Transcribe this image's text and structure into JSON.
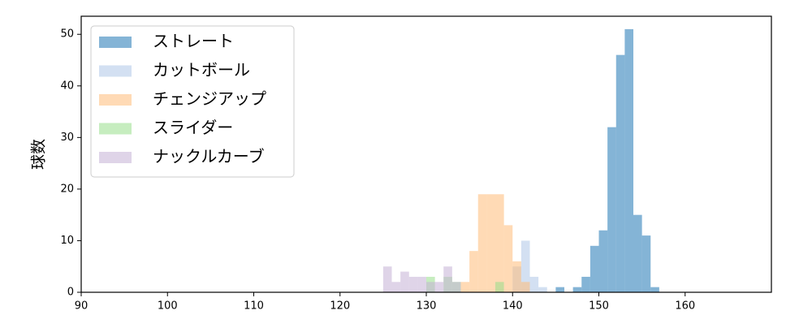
{
  "chart_data": {
    "type": "histogram",
    "y_label": "球数",
    "bins": [
      125,
      126,
      127,
      128,
      129,
      130,
      131,
      132,
      133,
      134,
      135,
      136,
      137,
      138,
      139,
      140,
      141,
      142,
      143,
      144,
      145,
      146,
      147,
      148,
      149,
      150,
      151,
      152,
      153,
      154,
      155,
      156,
      157
    ],
    "series": [
      {
        "name": "ストレート",
        "color": "#1f77b4",
        "values": [
          0,
          0,
          0,
          0,
          0,
          0,
          0,
          0,
          0,
          0,
          0,
          0,
          0,
          0,
          0,
          0,
          0,
          0,
          0,
          0,
          1,
          0,
          1,
          3,
          9,
          12,
          32,
          46,
          51,
          15,
          11,
          1
        ]
      },
      {
        "name": "カットボール",
        "color": "#aec7e8",
        "values": [
          0,
          0,
          0,
          0,
          0,
          0,
          0,
          0,
          0,
          0,
          0,
          0,
          0,
          0,
          0,
          5,
          10,
          3,
          1,
          0,
          0,
          0,
          0,
          0,
          0,
          0,
          0,
          0,
          0,
          0,
          0,
          0
        ]
      },
      {
        "name": "チェンジアップ",
        "color": "#ffbb78",
        "values": [
          0,
          0,
          0,
          0,
          0,
          0,
          0,
          0,
          0,
          2,
          8,
          19,
          19,
          19,
          13,
          6,
          2,
          0,
          0,
          0,
          0,
          0,
          0,
          0,
          0,
          0,
          0,
          0,
          0,
          0,
          0,
          0
        ]
      },
      {
        "name": "スライダー",
        "color": "#98df8a",
        "values": [
          0,
          0,
          0,
          0,
          0,
          3,
          0,
          3,
          2,
          0,
          0,
          0,
          0,
          2,
          0,
          0,
          0,
          0,
          0,
          0,
          0,
          0,
          0,
          0,
          0,
          0,
          0,
          0,
          0,
          0,
          0,
          0
        ]
      },
      {
        "name": "ナックルカーブ",
        "color": "#c5b0d5",
        "values": [
          5,
          2,
          4,
          3,
          3,
          2,
          2,
          5,
          2,
          0,
          0,
          0,
          0,
          0,
          0,
          0,
          0,
          0,
          0,
          0,
          0,
          0,
          0,
          0,
          0,
          0,
          0,
          0,
          0,
          0,
          0,
          0
        ]
      }
    ],
    "xlim": [
      90,
      170
    ],
    "ylim": [
      0,
      53.5
    ],
    "xticks": [
      90,
      100,
      110,
      120,
      130,
      140,
      150,
      160
    ],
    "yticks": [
      0,
      10,
      20,
      30,
      40,
      50
    ],
    "legend": "upper left",
    "alpha": 0.55
  }
}
